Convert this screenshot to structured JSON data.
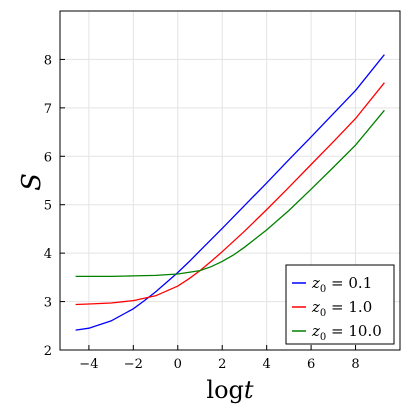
{
  "chart_data": {
    "type": "line",
    "xlabel_main": "log",
    "xlabel_var": "t",
    "ylabel": "S",
    "xlim": [
      -5.3,
      10.0
    ],
    "ylim": [
      2.0,
      9.0
    ],
    "xticks": [
      -4,
      -2,
      0,
      2,
      4,
      6,
      8
    ],
    "xtick_labels": [
      "−4",
      "−2",
      "0",
      "2",
      "4",
      "6",
      "8"
    ],
    "yticks": [
      2,
      3,
      4,
      5,
      6,
      7,
      8
    ],
    "ytick_labels": [
      "2",
      "3",
      "4",
      "5",
      "6",
      "7",
      "8"
    ],
    "grid": true,
    "legend_position": "bottom-right",
    "series": [
      {
        "name": "z₀ = 0.1",
        "name_base": "z",
        "name_sub": "0",
        "name_value": " = 0.1",
        "color": "#0000ff",
        "x": [
          -4.6,
          -4.0,
          -3.0,
          -2.0,
          -1.5,
          -1.0,
          -0.5,
          0.0,
          0.5,
          1.0,
          2.0,
          3.0,
          4.0,
          5.0,
          6.0,
          7.0,
          8.0,
          9.3
        ],
        "y": [
          2.41,
          2.45,
          2.6,
          2.85,
          3.02,
          3.2,
          3.4,
          3.6,
          3.82,
          4.05,
          4.51,
          4.98,
          5.45,
          5.93,
          6.4,
          6.88,
          7.36,
          8.1
        ]
      },
      {
        "name": "z₀ = 1.0",
        "name_base": "z",
        "name_sub": "0",
        "name_value": " = 1.0",
        "color": "#ff0000",
        "x": [
          -4.6,
          -4.0,
          -3.0,
          -2.0,
          -1.0,
          0.0,
          0.5,
          1.0,
          1.5,
          2.0,
          3.0,
          4.0,
          5.0,
          6.0,
          7.0,
          8.0,
          9.3
        ],
        "y": [
          2.94,
          2.95,
          2.97,
          3.02,
          3.12,
          3.32,
          3.47,
          3.64,
          3.83,
          4.03,
          4.45,
          4.9,
          5.36,
          5.83,
          6.3,
          6.78,
          7.52
        ]
      },
      {
        "name": "z₀ = 10.0",
        "name_base": "z",
        "name_sub": "0",
        "name_value": " = 10.0",
        "color": "#008000",
        "x": [
          -4.6,
          -4.0,
          -3.0,
          -2.0,
          -1.0,
          0.0,
          1.0,
          1.5,
          2.0,
          2.5,
          3.0,
          4.0,
          5.0,
          6.0,
          7.0,
          8.0,
          9.3
        ],
        "y": [
          3.52,
          3.52,
          3.52,
          3.53,
          3.54,
          3.57,
          3.64,
          3.72,
          3.83,
          3.96,
          4.12,
          4.48,
          4.88,
          5.32,
          5.77,
          6.23,
          6.95
        ]
      }
    ]
  }
}
